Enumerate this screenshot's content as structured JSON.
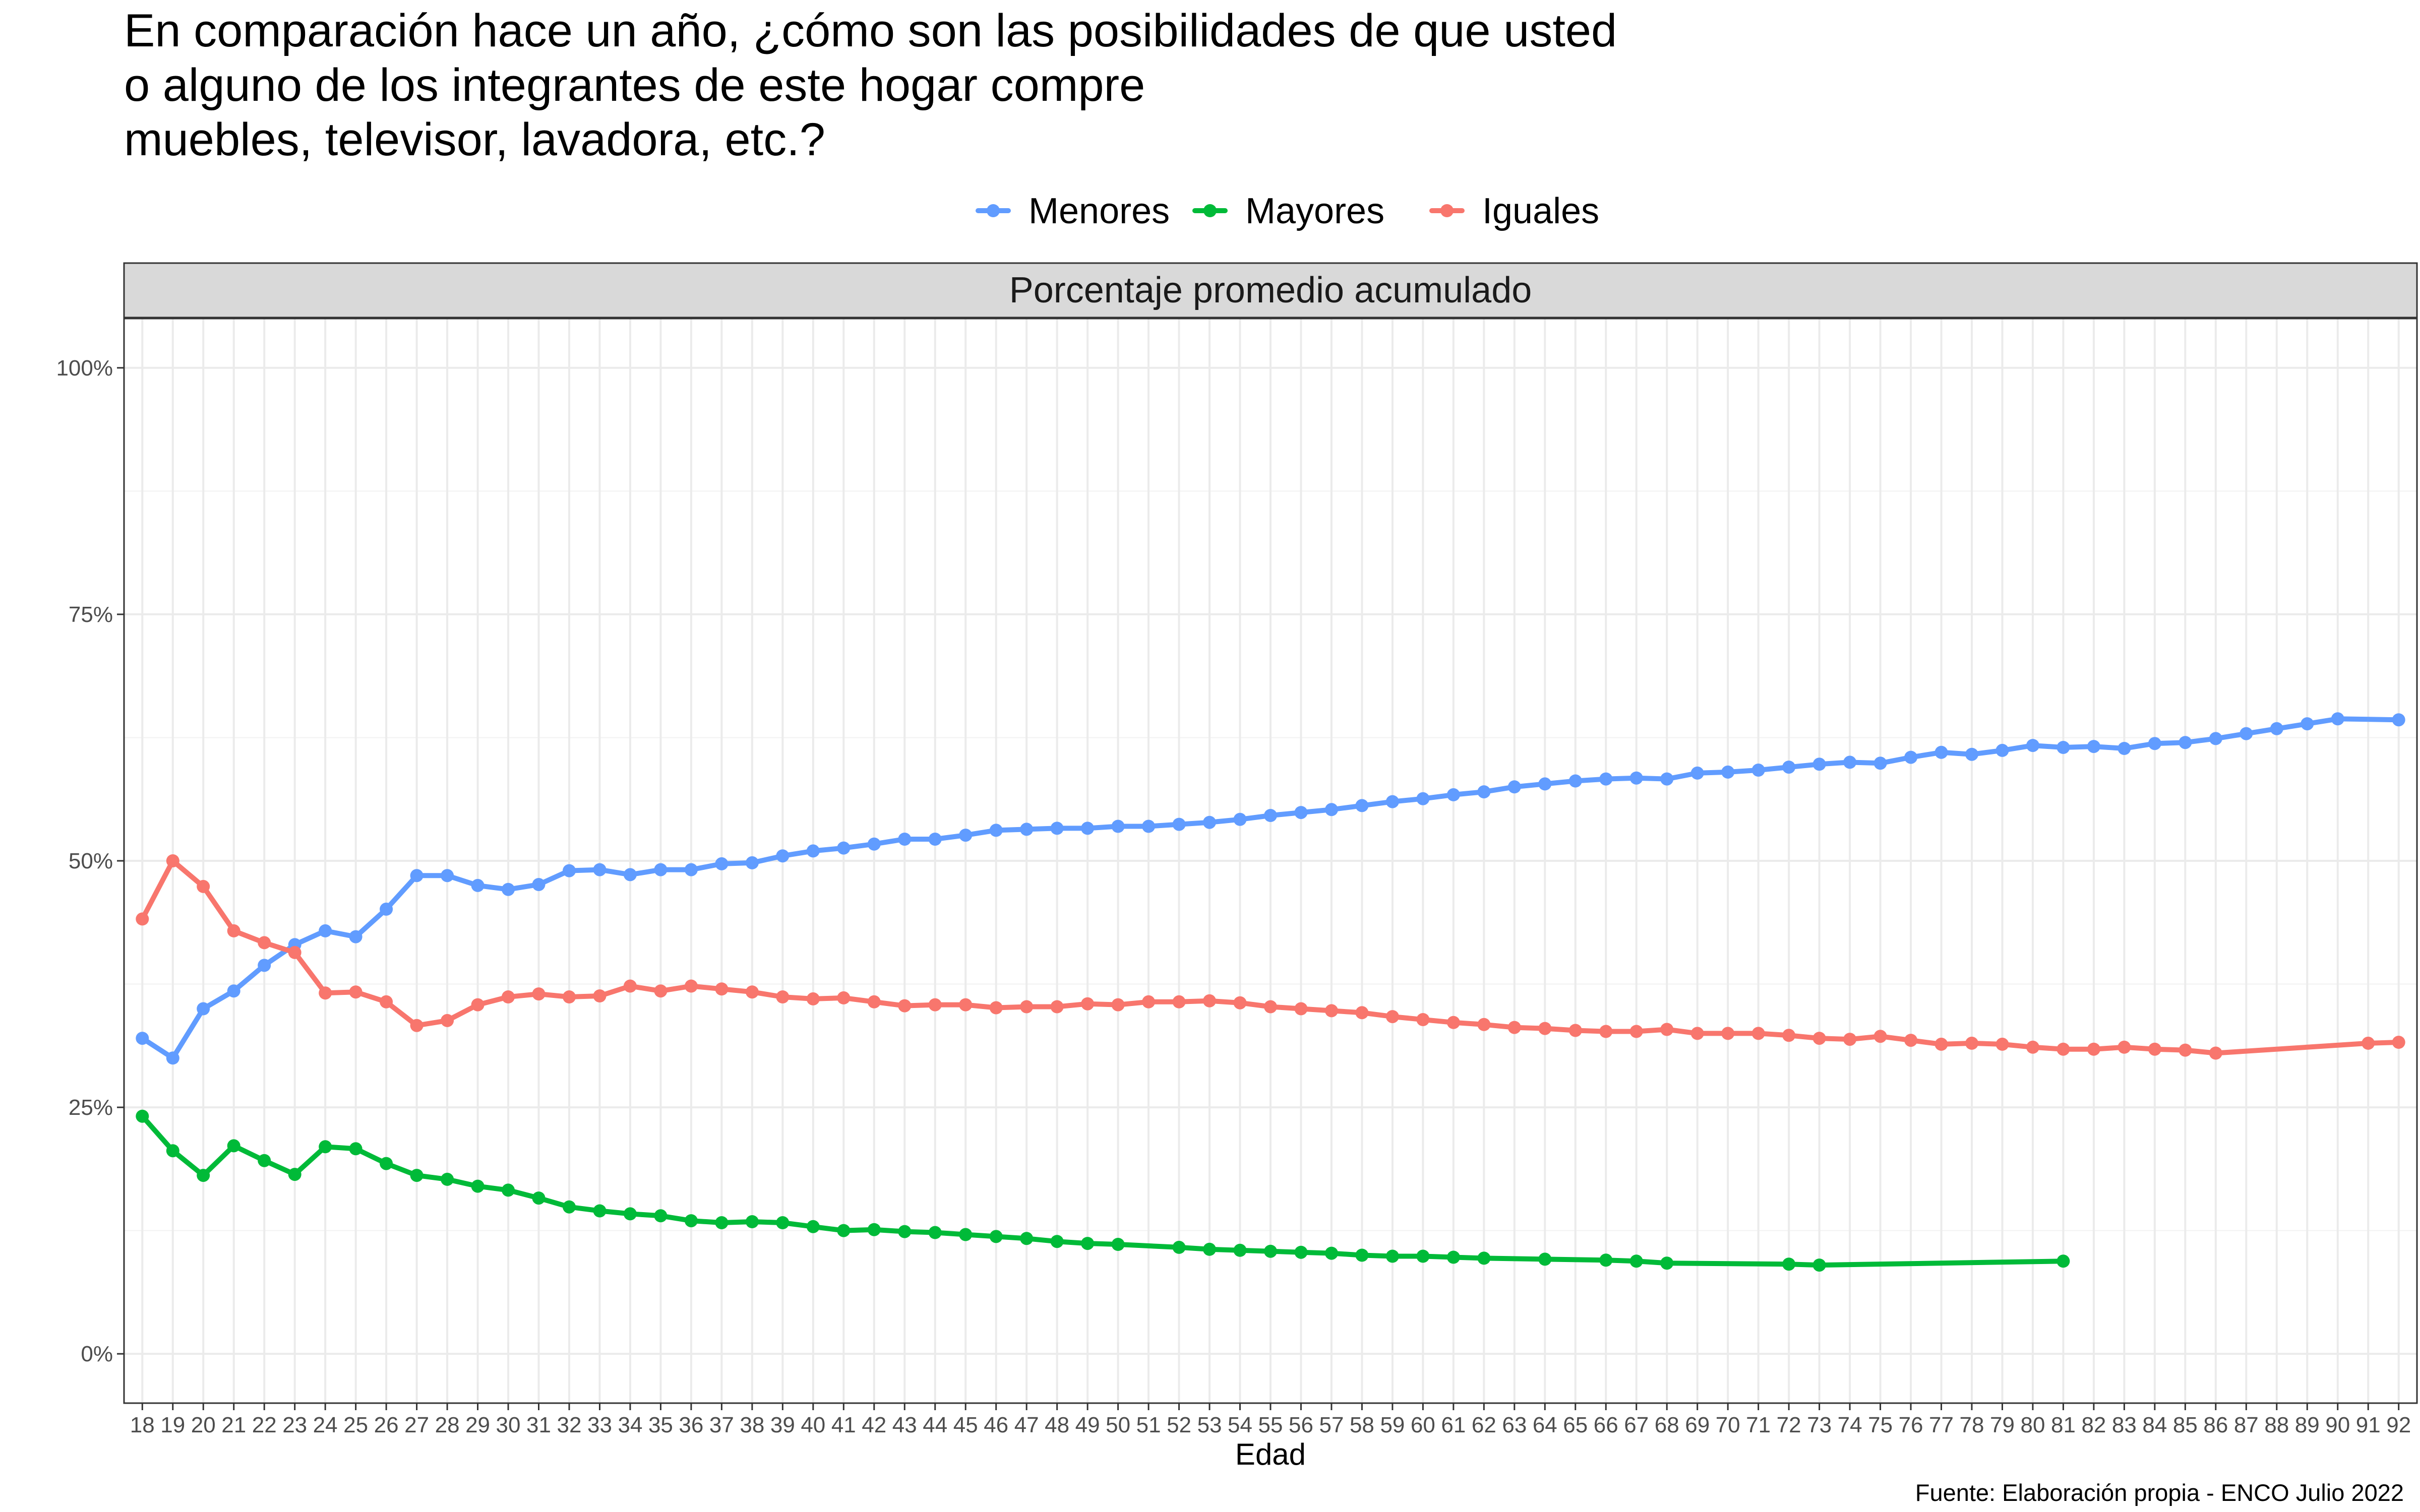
{
  "chart_data": {
    "type": "line",
    "title": "En comparación hace un año, ¿cómo son las posibilidades de que usted o alguno de los integrantes de este hogar compre muebles, televisor, lavadora, etc.?",
    "title_lines": [
      "En comparación hace un año, ¿cómo son las posibilidades de que usted",
      "o alguno de los integrantes de este hogar compre",
      "muebles, televisor, lavadora, etc.?"
    ],
    "facet_label": "Porcentaje promedio acumulado",
    "xlabel": "Edad",
    "ylabel": "",
    "caption": "Fuente: Elaboración propia - ENCO Julio 2022",
    "legend_position": "top",
    "grid": true,
    "xlim": [
      18,
      92
    ],
    "ylim": [
      0,
      1
    ],
    "x_ticks": [
      18,
      19,
      20,
      21,
      22,
      23,
      24,
      25,
      26,
      27,
      28,
      29,
      30,
      31,
      32,
      33,
      34,
      35,
      36,
      37,
      38,
      39,
      40,
      41,
      42,
      43,
      44,
      45,
      46,
      47,
      48,
      49,
      50,
      51,
      52,
      53,
      54,
      55,
      56,
      57,
      58,
      59,
      60,
      61,
      62,
      63,
      64,
      65,
      66,
      67,
      68,
      69,
      70,
      71,
      72,
      73,
      74,
      75,
      76,
      77,
      78,
      79,
      80,
      81,
      82,
      83,
      84,
      85,
      86,
      87,
      88,
      89,
      90,
      91,
      92
    ],
    "y_ticks": [
      {
        "value": 0,
        "label": "0%"
      },
      {
        "value": 0.25,
        "label": "25%"
      },
      {
        "value": 0.5,
        "label": "50%"
      },
      {
        "value": 0.75,
        "label": "75%"
      },
      {
        "value": 1,
        "label": "100%"
      }
    ],
    "series": [
      {
        "name": "Menores",
        "color": "#619CFF",
        "points": [
          [
            18,
            0.32
          ],
          [
            19,
            0.3
          ],
          [
            20,
            0.35
          ],
          [
            21,
            0.368
          ],
          [
            22,
            0.394
          ],
          [
            23,
            0.415
          ],
          [
            24,
            0.429
          ],
          [
            25,
            0.423
          ],
          [
            26,
            0.451
          ],
          [
            27,
            0.485
          ],
          [
            28,
            0.485
          ],
          [
            29,
            0.475
          ],
          [
            30,
            0.471
          ],
          [
            31,
            0.476
          ],
          [
            32,
            0.49
          ],
          [
            33,
            0.491
          ],
          [
            34,
            0.486
          ],
          [
            35,
            0.491
          ],
          [
            36,
            0.491
          ],
          [
            37,
            0.497
          ],
          [
            38,
            0.498
          ],
          [
            39,
            0.505
          ],
          [
            40,
            0.51
          ],
          [
            41,
            0.513
          ],
          [
            42,
            0.517
          ],
          [
            43,
            0.522
          ],
          [
            44,
            0.522
          ],
          [
            45,
            0.526
          ],
          [
            46,
            0.531
          ],
          [
            47,
            0.532
          ],
          [
            48,
            0.533
          ],
          [
            49,
            0.533
          ],
          [
            50,
            0.535
          ],
          [
            51,
            0.535
          ],
          [
            52,
            0.537
          ],
          [
            53,
            0.539
          ],
          [
            54,
            0.542
          ],
          [
            55,
            0.546
          ],
          [
            56,
            0.549
          ],
          [
            57,
            0.552
          ],
          [
            58,
            0.556
          ],
          [
            59,
            0.56
          ],
          [
            60,
            0.563
          ],
          [
            61,
            0.567
          ],
          [
            62,
            0.57
          ],
          [
            63,
            0.575
          ],
          [
            64,
            0.578
          ],
          [
            65,
            0.581
          ],
          [
            66,
            0.583
          ],
          [
            67,
            0.584
          ],
          [
            68,
            0.583
          ],
          [
            69,
            0.589
          ],
          [
            70,
            0.59
          ],
          [
            71,
            0.592
          ],
          [
            72,
            0.595
          ],
          [
            73,
            0.598
          ],
          [
            74,
            0.6
          ],
          [
            75,
            0.599
          ],
          [
            76,
            0.605
          ],
          [
            77,
            0.61
          ],
          [
            78,
            0.608
          ],
          [
            79,
            0.612
          ],
          [
            80,
            0.617
          ],
          [
            81,
            0.615
          ],
          [
            82,
            0.616
          ],
          [
            83,
            0.614
          ],
          [
            84,
            0.619
          ],
          [
            85,
            0.62
          ],
          [
            86,
            0.624
          ],
          [
            87,
            0.629
          ],
          [
            88,
            0.634
          ],
          [
            89,
            0.639
          ],
          [
            90,
            0.644
          ],
          [
            92,
            0.643
          ]
        ]
      },
      {
        "name": "Mayores",
        "color": "#00BA38",
        "points": [
          [
            18,
            0.241
          ],
          [
            19,
            0.206
          ],
          [
            20,
            0.181
          ],
          [
            21,
            0.211
          ],
          [
            22,
            0.196
          ],
          [
            23,
            0.182
          ],
          [
            24,
            0.21
          ],
          [
            25,
            0.208
          ],
          [
            26,
            0.193
          ],
          [
            27,
            0.181
          ],
          [
            28,
            0.177
          ],
          [
            29,
            0.17
          ],
          [
            30,
            0.166
          ],
          [
            31,
            0.158
          ],
          [
            32,
            0.149
          ],
          [
            33,
            0.145
          ],
          [
            34,
            0.142
          ],
          [
            35,
            0.14
          ],
          [
            36,
            0.135
          ],
          [
            37,
            0.133
          ],
          [
            38,
            0.134
          ],
          [
            39,
            0.133
          ],
          [
            40,
            0.129
          ],
          [
            41,
            0.125
          ],
          [
            42,
            0.126
          ],
          [
            43,
            0.124
          ],
          [
            44,
            0.123
          ],
          [
            45,
            0.121
          ],
          [
            46,
            0.119
          ],
          [
            47,
            0.117
          ],
          [
            48,
            0.114
          ],
          [
            49,
            0.112
          ],
          [
            50,
            0.111
          ],
          [
            52,
            0.108
          ],
          [
            53,
            0.106
          ],
          [
            54,
            0.105
          ],
          [
            55,
            0.104
          ],
          [
            56,
            0.103
          ],
          [
            57,
            0.102
          ],
          [
            58,
            0.1
          ],
          [
            59,
            0.099
          ],
          [
            60,
            0.099
          ],
          [
            61,
            0.098
          ],
          [
            62,
            0.097
          ],
          [
            64,
            0.096
          ],
          [
            66,
            0.095
          ],
          [
            67,
            0.094
          ],
          [
            68,
            0.092
          ],
          [
            72,
            0.091
          ],
          [
            73,
            0.09
          ],
          [
            81,
            0.094
          ]
        ]
      },
      {
        "name": "Iguales",
        "color": "#F8766D",
        "points": [
          [
            18,
            0.441
          ],
          [
            19,
            0.5
          ],
          [
            20,
            0.474
          ],
          [
            21,
            0.429
          ],
          [
            22,
            0.417
          ],
          [
            23,
            0.407
          ],
          [
            24,
            0.366
          ],
          [
            25,
            0.367
          ],
          [
            26,
            0.357
          ],
          [
            27,
            0.333
          ],
          [
            28,
            0.338
          ],
          [
            29,
            0.354
          ],
          [
            30,
            0.362
          ],
          [
            31,
            0.365
          ],
          [
            32,
            0.362
          ],
          [
            33,
            0.363
          ],
          [
            34,
            0.373
          ],
          [
            35,
            0.368
          ],
          [
            36,
            0.373
          ],
          [
            37,
            0.37
          ],
          [
            38,
            0.367
          ],
          [
            39,
            0.362
          ],
          [
            40,
            0.36
          ],
          [
            41,
            0.361
          ],
          [
            42,
            0.357
          ],
          [
            43,
            0.353
          ],
          [
            44,
            0.354
          ],
          [
            45,
            0.354
          ],
          [
            46,
            0.351
          ],
          [
            47,
            0.352
          ],
          [
            48,
            0.352
          ],
          [
            49,
            0.355
          ],
          [
            50,
            0.354
          ],
          [
            51,
            0.357
          ],
          [
            52,
            0.357
          ],
          [
            53,
            0.358
          ],
          [
            54,
            0.356
          ],
          [
            55,
            0.352
          ],
          [
            56,
            0.35
          ],
          [
            57,
            0.348
          ],
          [
            58,
            0.346
          ],
          [
            59,
            0.342
          ],
          [
            60,
            0.339
          ],
          [
            61,
            0.336
          ],
          [
            62,
            0.334
          ],
          [
            63,
            0.331
          ],
          [
            64,
            0.33
          ],
          [
            65,
            0.328
          ],
          [
            66,
            0.327
          ],
          [
            67,
            0.327
          ],
          [
            68,
            0.329
          ],
          [
            69,
            0.325
          ],
          [
            70,
            0.325
          ],
          [
            71,
            0.325
          ],
          [
            72,
            0.323
          ],
          [
            73,
            0.32
          ],
          [
            74,
            0.319
          ],
          [
            75,
            0.322
          ],
          [
            76,
            0.318
          ],
          [
            77,
            0.314
          ],
          [
            78,
            0.315
          ],
          [
            79,
            0.314
          ],
          [
            80,
            0.311
          ],
          [
            81,
            0.309
          ],
          [
            82,
            0.309
          ],
          [
            83,
            0.311
          ],
          [
            84,
            0.309
          ],
          [
            85,
            0.308
          ],
          [
            86,
            0.305
          ],
          [
            91,
            0.315
          ],
          [
            92,
            0.316
          ]
        ]
      }
    ]
  }
}
